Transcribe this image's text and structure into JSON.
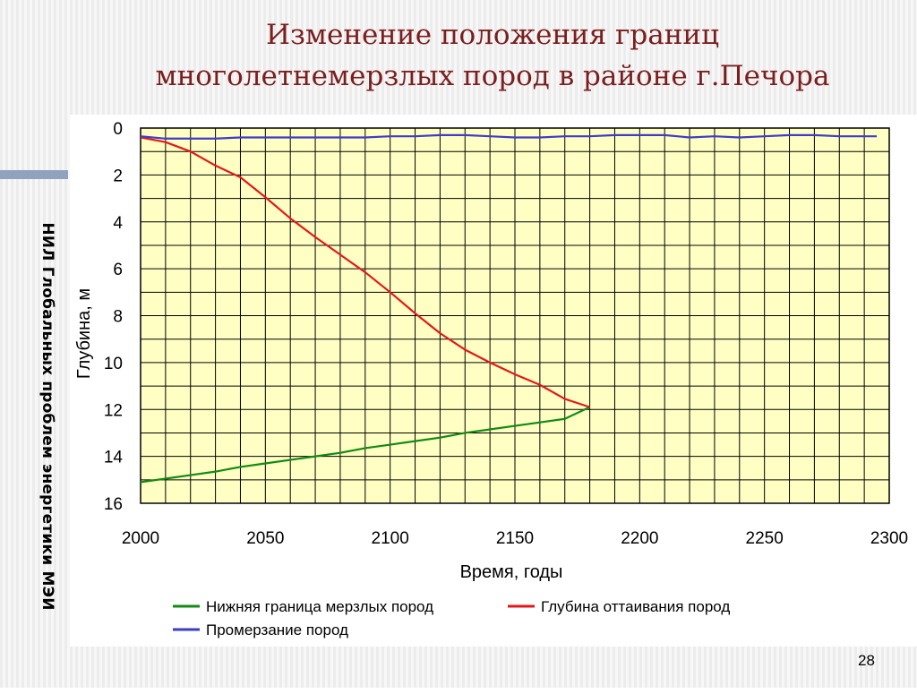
{
  "slide": {
    "title_line1": "Изменение положения границ",
    "title_line2": "многолетнемерзлых пород в районе г.Печора",
    "side_label": "НИЛ Глобальных проблем энергетики МЭИ",
    "page_number": "28"
  },
  "colors": {
    "plot_bg": "#ffffc4",
    "green": "#138a13",
    "red": "#e51818",
    "blue": "#3c3cc8",
    "title": "#7b1e1e"
  },
  "chart_data": {
    "type": "line",
    "xlabel": "Время, годы",
    "ylabel": "Глубина, м",
    "xlim": [
      2000,
      2300
    ],
    "ylim": [
      0,
      16
    ],
    "y_inverted": true,
    "x_ticks": [
      2000,
      2050,
      2100,
      2150,
      2200,
      2250,
      2300
    ],
    "y_ticks": [
      0,
      2,
      4,
      6,
      8,
      10,
      12,
      14,
      16
    ],
    "grid": true,
    "legend_position": "bottom",
    "series": [
      {
        "name": "Нижняя граница мерзлых пород",
        "color": "#138a13",
        "x": [
          2000,
          2010,
          2020,
          2030,
          2040,
          2050,
          2060,
          2070,
          2080,
          2090,
          2100,
          2110,
          2120,
          2130,
          2140,
          2150,
          2160,
          2170,
          2180
        ],
        "y": [
          15.1,
          14.95,
          14.8,
          14.65,
          14.45,
          14.3,
          14.15,
          14.0,
          13.85,
          13.65,
          13.5,
          13.35,
          13.2,
          13.0,
          12.85,
          12.7,
          12.55,
          12.4,
          11.9
        ]
      },
      {
        "name": "Глубина оттаивания пород",
        "color": "#e51818",
        "x": [
          2000,
          2010,
          2020,
          2030,
          2040,
          2050,
          2060,
          2070,
          2080,
          2090,
          2100,
          2110,
          2120,
          2130,
          2140,
          2150,
          2160,
          2170,
          2180
        ],
        "y": [
          0.4,
          0.6,
          1.0,
          1.6,
          2.1,
          2.95,
          3.85,
          4.65,
          5.4,
          6.15,
          7.0,
          7.9,
          8.75,
          9.45,
          10.0,
          10.5,
          10.95,
          11.55,
          11.9
        ]
      },
      {
        "name": "Промерзание пород",
        "color": "#3c3cc8",
        "x": [
          2000,
          2010,
          2020,
          2030,
          2040,
          2050,
          2060,
          2070,
          2080,
          2090,
          2100,
          2110,
          2120,
          2130,
          2140,
          2150,
          2160,
          2170,
          2180,
          2190,
          2200,
          2210,
          2220,
          2230,
          2240,
          2250,
          2260,
          2270,
          2280,
          2290,
          2295
        ],
        "y": [
          0.35,
          0.45,
          0.45,
          0.45,
          0.4,
          0.4,
          0.4,
          0.4,
          0.4,
          0.4,
          0.35,
          0.35,
          0.3,
          0.3,
          0.35,
          0.4,
          0.4,
          0.35,
          0.35,
          0.3,
          0.3,
          0.3,
          0.4,
          0.35,
          0.4,
          0.35,
          0.3,
          0.3,
          0.35,
          0.35,
          0.35
        ]
      }
    ]
  }
}
